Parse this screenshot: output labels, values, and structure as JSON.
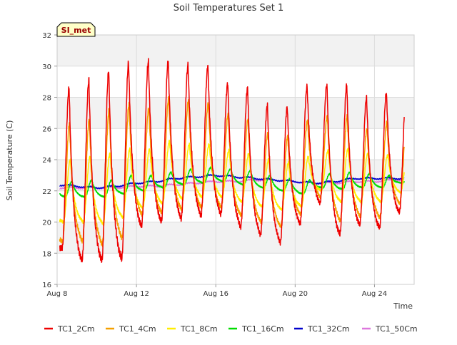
{
  "chart_data": {
    "type": "line",
    "title": "Soil Temperatures Set 1",
    "xlabel": "Time",
    "ylabel": "Soil Temperature (C)",
    "xlim": [
      "2023-08-08",
      "2023-08-26"
    ],
    "ylim": [
      16,
      32
    ],
    "yticks": [
      16,
      18,
      20,
      22,
      24,
      26,
      28,
      30,
      32
    ],
    "xticks": [
      {
        "date": "2023-08-08",
        "label": "Aug 8"
      },
      {
        "date": "2023-08-12",
        "label": "Aug 12"
      },
      {
        "date": "2023-08-16",
        "label": "Aug 16"
      },
      {
        "date": "2023-08-20",
        "label": "Aug 20"
      },
      {
        "date": "2023-08-24",
        "label": "Aug 24"
      }
    ],
    "grid": true,
    "legend_position": "bottom",
    "site_badge": "SI_met",
    "days": [
      "2023-08-08",
      "2023-08-09",
      "2023-08-10",
      "2023-08-11",
      "2023-08-12",
      "2023-08-13",
      "2023-08-14",
      "2023-08-15",
      "2023-08-16",
      "2023-08-17",
      "2023-08-18",
      "2023-08-19",
      "2023-08-20",
      "2023-08-21",
      "2023-08-22",
      "2023-08-23",
      "2023-08-24",
      "2023-08-25"
    ],
    "series": [
      {
        "name": "TC1_2Cm",
        "color": "#ee0000",
        "min": [
          18.3,
          17.5,
          17.5,
          17.6,
          19.7,
          20.0,
          20.2,
          20.4,
          20.5,
          19.7,
          19.2,
          18.7,
          19.9,
          21.2,
          19.2,
          19.8,
          19.6,
          20.6
        ],
        "max": [
          28.6,
          29.1,
          29.7,
          30.2,
          30.3,
          30.3,
          30.1,
          30.0,
          28.9,
          28.6,
          27.5,
          27.4,
          28.7,
          28.8,
          28.8,
          28.0,
          28.3,
          null
        ]
      },
      {
        "name": "TC1_4Cm",
        "color": "#f5a000",
        "min": [
          18.8,
          18.8,
          18.6,
          19.0,
          20.5,
          20.6,
          20.8,
          20.9,
          20.9,
          20.4,
          20.0,
          19.7,
          20.5,
          21.6,
          20.1,
          20.4,
          20.3,
          21.2
        ],
        "max": [
          26.3,
          26.6,
          27.2,
          27.5,
          27.3,
          27.9,
          27.8,
          27.6,
          26.9,
          26.6,
          25.7,
          25.5,
          26.5,
          26.8,
          26.8,
          26.0,
          26.4,
          null
        ]
      },
      {
        "name": "TC1_8Cm",
        "color": "#ffee00",
        "min": [
          20.0,
          20.0,
          19.9,
          20.3,
          20.9,
          21.2,
          21.5,
          21.6,
          21.6,
          21.3,
          21.0,
          20.8,
          21.0,
          22.0,
          21.3,
          21.3,
          21.3,
          21.9
        ],
        "max": [
          24.0,
          24.2,
          24.4,
          24.7,
          24.7,
          25.2,
          25.0,
          25.0,
          24.6,
          24.4,
          24.0,
          23.8,
          24.2,
          24.6,
          24.7,
          24.4,
          24.3,
          null
        ]
      },
      {
        "name": "TC1_16Cm",
        "color": "#00dd00",
        "min": [
          21.6,
          21.6,
          21.6,
          21.8,
          22.0,
          22.2,
          22.4,
          22.5,
          22.6,
          22.4,
          22.2,
          22.0,
          21.8,
          22.2,
          22.1,
          22.2,
          22.2,
          22.5
        ],
        "max": [
          22.6,
          22.7,
          22.7,
          23.0,
          23.0,
          23.2,
          23.4,
          23.5,
          23.4,
          23.3,
          23.0,
          22.8,
          22.7,
          23.1,
          23.2,
          23.1,
          23.0,
          null
        ]
      },
      {
        "name": "TC1_32Cm",
        "color": "#0000cc",
        "daily": [
          22.4,
          22.3,
          22.2,
          22.3,
          22.5,
          22.6,
          22.8,
          22.9,
          23.0,
          22.9,
          22.8,
          22.7,
          22.6,
          22.5,
          22.6,
          22.8,
          22.8,
          22.8
        ]
      },
      {
        "name": "TC1_50Cm",
        "color": "#dd77dd",
        "daily": [
          22.2,
          22.2,
          22.2,
          22.2,
          22.3,
          22.3,
          22.4,
          22.5,
          22.6,
          22.6,
          22.7,
          22.7,
          22.6,
          22.5,
          22.5,
          22.6,
          22.6,
          22.7
        ]
      }
    ],
    "series_end": "2023-08-25T12:00"
  }
}
